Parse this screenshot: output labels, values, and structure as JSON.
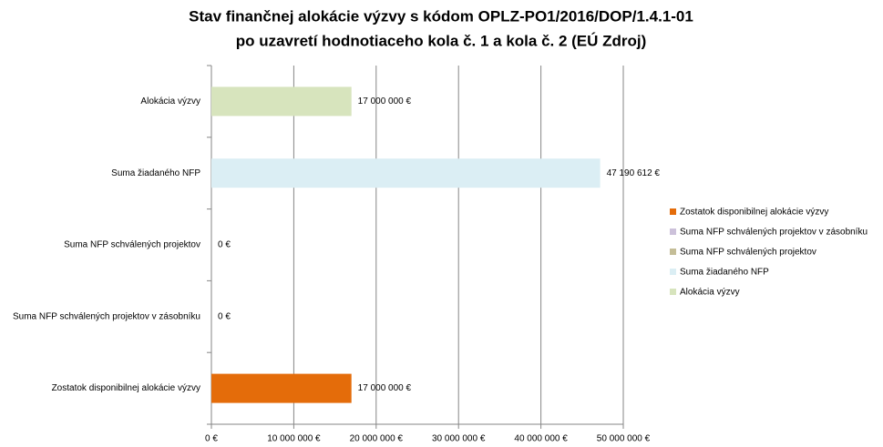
{
  "chart_data": {
    "type": "bar",
    "orientation": "horizontal",
    "title": [
      "Stav finančnej alokácie výzvy s kódom OPLZ-PO1/2016/DOP/1.4.1-01",
      "po uzavretí hodnotiaceho kola č. 1 a kola č. 2 (EÚ Zdroj)"
    ],
    "categories": [
      "Alokácia výzvy",
      "Suma žiadaného NFP",
      "Suma NFP schválených projektov",
      "Suma NFP schválených projektov v zásobníku",
      "Zostatok disponibilnej alokácie výzvy"
    ],
    "series": [
      {
        "name": "Alokácia výzvy",
        "color": "#d7e4bd",
        "values": [
          17000000,
          null,
          null,
          null,
          null
        ],
        "value_labels": [
          "17 000 000 €",
          null,
          null,
          null,
          null
        ]
      },
      {
        "name": "Suma žiadaného NFP",
        "color": "#dbeef4",
        "values": [
          null,
          47190612,
          null,
          null,
          null
        ],
        "value_labels": [
          null,
          "47 190 612 €",
          null,
          null,
          null
        ]
      },
      {
        "name": "Suma NFP schválených projektov",
        "color": "#c4bd97",
        "values": [
          null,
          null,
          0,
          null,
          null
        ],
        "value_labels": [
          null,
          null,
          "0 €",
          null,
          null
        ]
      },
      {
        "name": "Suma NFP schválených projektov v zásobníku",
        "color": "#ccc1da",
        "values": [
          null,
          null,
          null,
          0,
          null
        ],
        "value_labels": [
          null,
          null,
          null,
          "0 €",
          null
        ]
      },
      {
        "name": "Zostatok disponibilnej alokácie výzvy",
        "color": "#e46c0a",
        "values": [
          null,
          null,
          null,
          null,
          17000000
        ],
        "value_labels": [
          null,
          null,
          null,
          null,
          "17 000 000 €"
        ]
      }
    ],
    "xlim": [
      0,
      50000000
    ],
    "xticks": [
      {
        "value": 0,
        "label": "0 €"
      },
      {
        "value": 10000000,
        "label": "10 000 000 €"
      },
      {
        "value": 20000000,
        "label": "20 000 000 €"
      },
      {
        "value": 30000000,
        "label": "30 000 000 €"
      },
      {
        "value": 40000000,
        "label": "40 000 000 €"
      },
      {
        "value": 50000000,
        "label": "50 000 000 €"
      }
    ],
    "grid": true,
    "legend": "right"
  }
}
